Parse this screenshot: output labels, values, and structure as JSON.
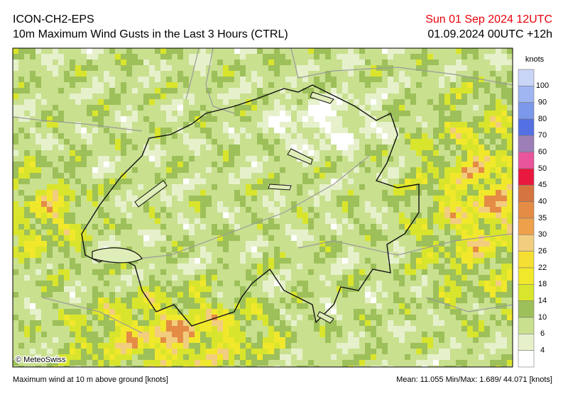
{
  "header": {
    "model": "ICON-CH2-EPS",
    "title": "10m Maximum Wind Gusts in the Last 3 Hours (CTRL)",
    "valid": "Sun 01 Sep 2024 12UTC",
    "run": "01.09.2024 00UTC +12h"
  },
  "legend": {
    "unit": "knots",
    "labels": [
      100,
      90,
      80,
      70,
      60,
      50,
      45,
      40,
      35,
      30,
      26,
      22,
      18,
      14,
      10,
      6,
      4
    ],
    "colors": [
      "#c9d5f7",
      "#9fb6f2",
      "#7c98ea",
      "#5470e2",
      "#9c7fb6",
      "#e9559c",
      "#e8183f",
      "#d5743f",
      "#e48c45",
      "#eea04a",
      "#f2cd7f",
      "#f6df33",
      "#f1e82c",
      "#d9e52c",
      "#9dc05a",
      "#c9e08f",
      "#e6f1cc",
      "#ffffff"
    ]
  },
  "map": {
    "credit": "© MeteoSwiss"
  },
  "footer": {
    "description": "Maximum wind at 10 m above ground [knots]",
    "stats": "Mean:  11.055 Min/Max:  1.689/ 44.071 [knots]"
  }
}
